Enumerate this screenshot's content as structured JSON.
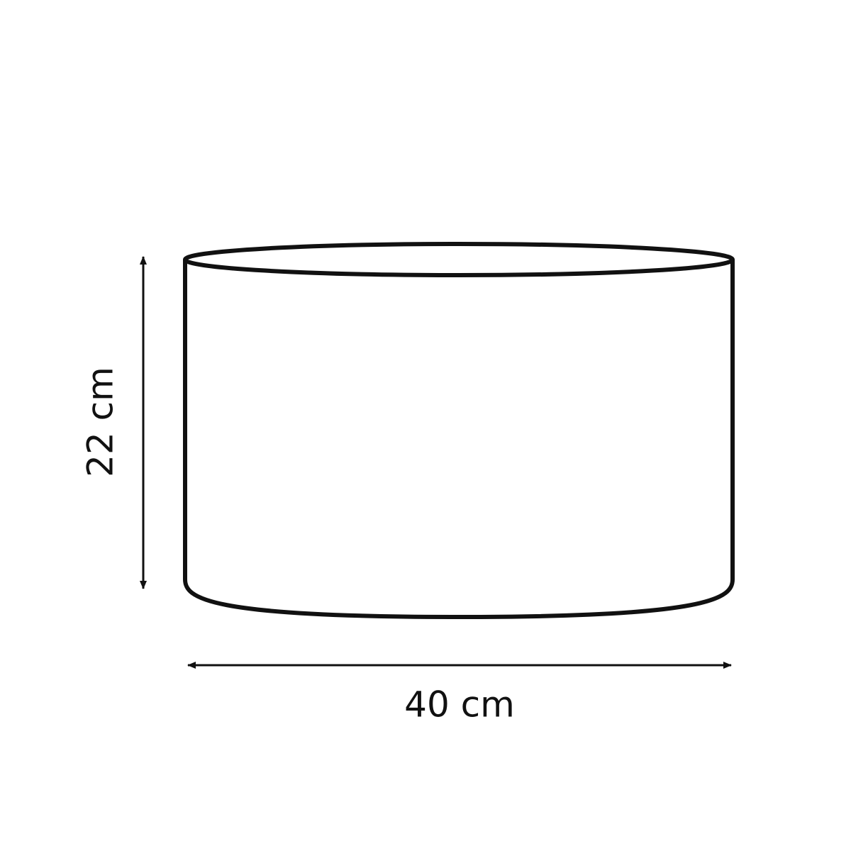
{
  "diagram": {
    "height_label": "22 cm",
    "width_label": "40 cm",
    "line_color": "#111111",
    "background_color": "#ffffff"
  }
}
